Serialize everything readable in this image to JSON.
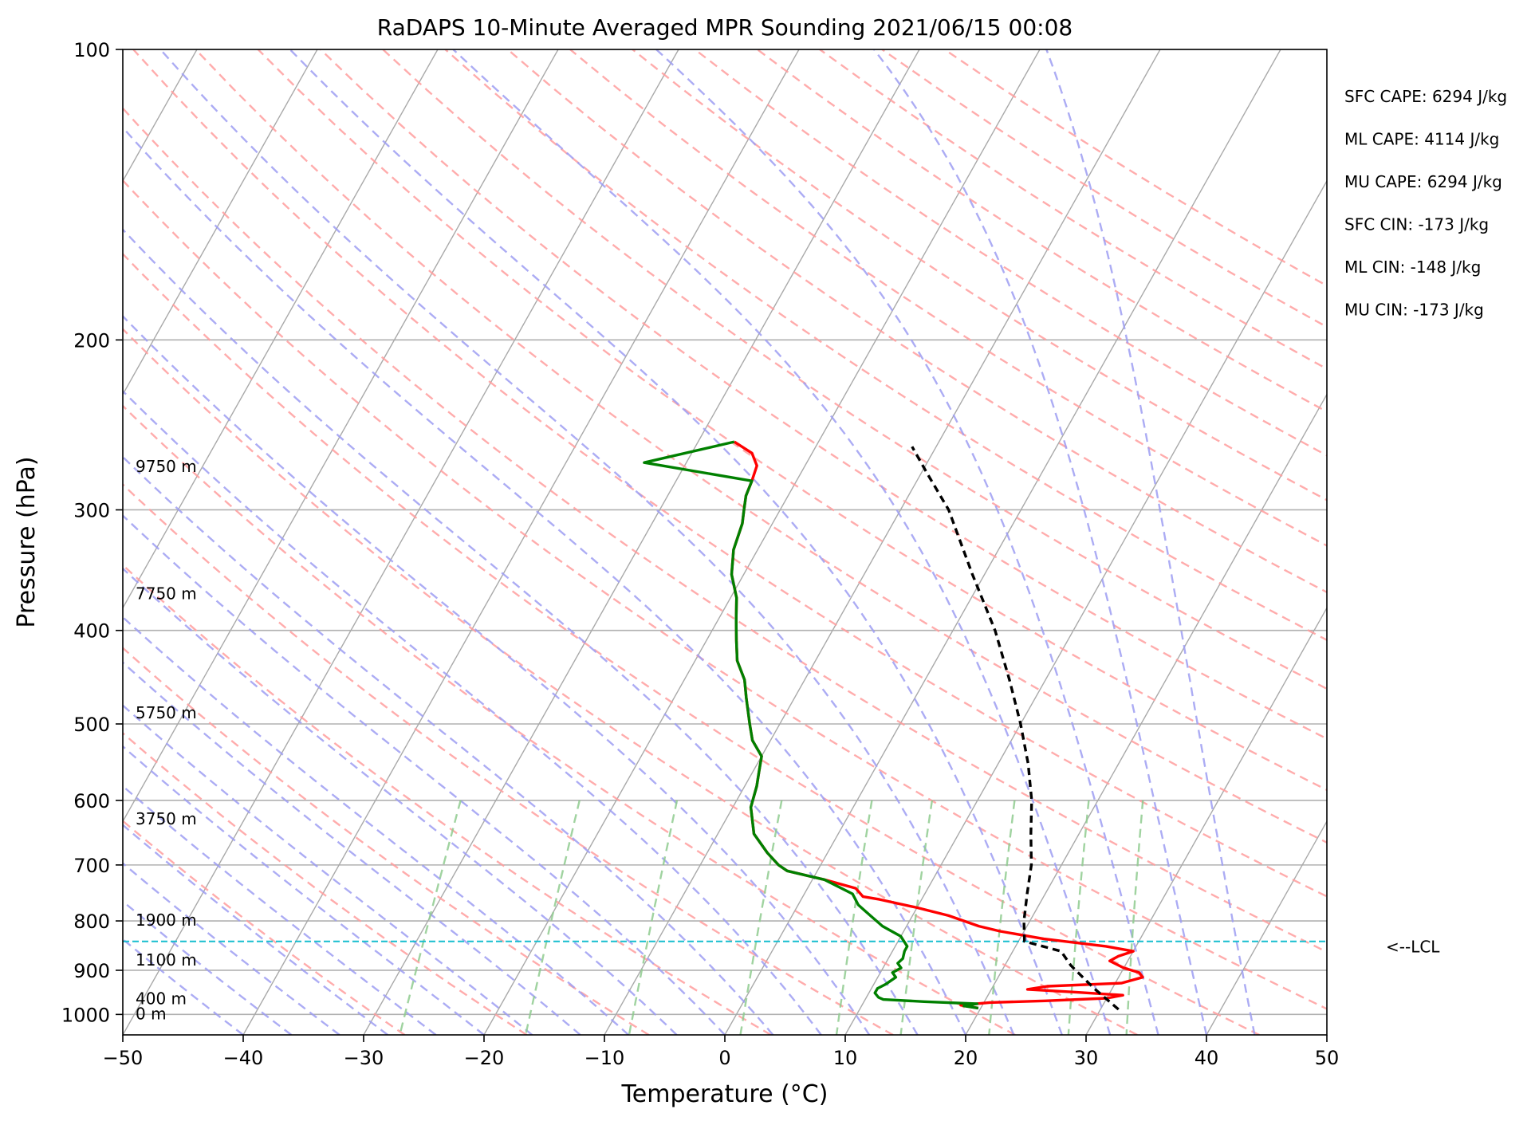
{
  "chart_data": {
    "type": "line",
    "title": "RaDAPS 10-Minute Averaged MPR Sounding 2021/06/15 00:08",
    "xlabel": "Temperature (°C)",
    "ylabel": "Pressure (hPa)",
    "xlim": [
      -50,
      50
    ],
    "ylim": [
      1050,
      100
    ],
    "y_scale": "log",
    "skew_x_per_log_decade": 45.2,
    "x_ticks": [
      -50,
      -40,
      -30,
      -20,
      -10,
      0,
      10,
      20,
      30,
      40,
      50
    ],
    "x_tick_labels": [
      "−50",
      "−40",
      "−30",
      "−20",
      "−10",
      "0",
      "10",
      "20",
      "30",
      "40",
      "50"
    ],
    "y_ticks": [
      100,
      200,
      300,
      400,
      500,
      600,
      700,
      800,
      900,
      1000
    ],
    "y_tick_labels": [
      "100",
      "200",
      "300",
      "400",
      "500",
      "600",
      "700",
      "800",
      "900",
      "1000"
    ],
    "grid": true,
    "background_lines": {
      "isotherm_color": "#a9a9a9",
      "dry_adiabat_color": "#ff9e9e",
      "moist_adiabat_color": "#9d9df2",
      "mixing_ratio_color": "#8fcb8f",
      "lcl_color": "#17becf"
    },
    "series": [
      {
        "color": "#ff0000",
        "points": [
          [
            19.8,
            985
          ],
          [
            18.2,
            978
          ],
          [
            20.5,
            972
          ],
          [
            25.0,
            968
          ],
          [
            30.0,
            962
          ],
          [
            31.2,
            955
          ],
          [
            27.0,
            948
          ],
          [
            23.0,
            942
          ],
          [
            24.5,
            935
          ],
          [
            30.5,
            928
          ],
          [
            32.0,
            915
          ],
          [
            31.5,
            905
          ],
          [
            30.0,
            895
          ],
          [
            28.5,
            880
          ],
          [
            29.0,
            870
          ],
          [
            30.0,
            860
          ],
          [
            27.5,
            850
          ],
          [
            22.0,
            835
          ],
          [
            18.0,
            820
          ],
          [
            16.0,
            810
          ],
          [
            13.0,
            790
          ],
          [
            10.0,
            775
          ],
          [
            6.5,
            760
          ],
          [
            5.0,
            755
          ],
          [
            4.0,
            740
          ],
          [
            1.0,
            725
          ],
          [
            -2.5,
            710
          ],
          [
            -3.5,
            700
          ],
          [
            -5.0,
            680
          ],
          [
            -7.0,
            650
          ],
          [
            -8.5,
            610
          ],
          [
            -9.0,
            580
          ],
          [
            -9.5,
            560
          ],
          [
            -10.0,
            540
          ],
          [
            -11.5,
            520
          ],
          [
            -12.5,
            500
          ],
          [
            -14.0,
            470
          ],
          [
            -15.0,
            450
          ],
          [
            -16.5,
            430
          ],
          [
            -17.5,
            410
          ],
          [
            -18.5,
            390
          ],
          [
            -19.5,
            370
          ],
          [
            -21.0,
            350
          ],
          [
            -22.0,
            330
          ],
          [
            -22.5,
            310
          ],
          [
            -23.0,
            300
          ],
          [
            -23.5,
            290
          ],
          [
            -23.7,
            280
          ],
          [
            -24.0,
            270
          ],
          [
            -25.0,
            262
          ],
          [
            -27.0,
            255
          ]
        ]
      },
      {
        "color": "#008000",
        "points": [
          [
            19.8,
            985
          ],
          [
            18.5,
            980
          ],
          [
            19.5,
            975
          ],
          [
            15.0,
            970
          ],
          [
            11.5,
            965
          ],
          [
            11.0,
            960
          ],
          [
            10.5,
            950
          ],
          [
            10.5,
            940
          ],
          [
            11.0,
            930
          ],
          [
            11.5,
            915
          ],
          [
            11.0,
            905
          ],
          [
            11.5,
            895
          ],
          [
            11.0,
            885
          ],
          [
            11.2,
            875
          ],
          [
            11.0,
            860
          ],
          [
            11.0,
            850
          ],
          [
            10.0,
            830
          ],
          [
            8.0,
            810
          ],
          [
            6.5,
            790
          ],
          [
            5.0,
            770
          ],
          [
            4.0,
            750
          ],
          [
            1.0,
            725
          ],
          [
            -2.5,
            710
          ],
          [
            -3.5,
            700
          ],
          [
            -5.0,
            680
          ],
          [
            -7.0,
            650
          ],
          [
            -8.5,
            610
          ],
          [
            -9.0,
            580
          ],
          [
            -9.5,
            560
          ],
          [
            -10.0,
            540
          ],
          [
            -11.5,
            520
          ],
          [
            -12.5,
            500
          ],
          [
            -14.0,
            470
          ],
          [
            -15.0,
            450
          ],
          [
            -16.5,
            430
          ],
          [
            -17.5,
            410
          ],
          [
            -18.5,
            390
          ],
          [
            -19.5,
            370
          ],
          [
            -21.0,
            350
          ],
          [
            -22.0,
            330
          ],
          [
            -22.5,
            310
          ],
          [
            -23.0,
            300
          ],
          [
            -23.5,
            290
          ],
          [
            -23.7,
            280
          ],
          [
            -33.5,
            268
          ],
          [
            -27.0,
            255
          ]
        ]
      },
      {
        "color": "#000000",
        "dashed": true,
        "points": [
          [
            31.5,
            988
          ],
          [
            28.5,
            940
          ],
          [
            25.5,
            890
          ],
          [
            24.0,
            860
          ],
          [
            20.5,
            840
          ],
          [
            19.5,
            800
          ],
          [
            18.5,
            750
          ],
          [
            17.5,
            700
          ],
          [
            16.0,
            650
          ],
          [
            14.5,
            600
          ],
          [
            12.5,
            550
          ],
          [
            10.0,
            500
          ],
          [
            7.0,
            450
          ],
          [
            3.5,
            400
          ],
          [
            -1.0,
            350
          ],
          [
            -6.0,
            300
          ],
          [
            -9.5,
            275
          ],
          [
            -12.0,
            258
          ]
        ]
      }
    ],
    "lcl": {
      "pressure": 840,
      "label": "<--LCL"
    },
    "height_labels": [
      {
        "pressure": 1000,
        "text": "0 m"
      },
      {
        "pressure": 965,
        "text": "400 m"
      },
      {
        "pressure": 880,
        "text": "1100 m"
      },
      {
        "pressure": 800,
        "text": "1900 m"
      },
      {
        "pressure": 628,
        "text": "3750 m"
      },
      {
        "pressure": 488,
        "text": "5750 m"
      },
      {
        "pressure": 367,
        "text": "7750 m"
      },
      {
        "pressure": 271,
        "text": "9750 m"
      }
    ],
    "annotations": [
      "SFC CAPE: 6294 J/kg",
      "ML CAPE: 4114 J/kg",
      "MU CAPE: 6294 J/kg",
      "SFC CIN: -173 J/kg",
      "ML CIN: -148 J/kg",
      "MU CIN: -173 J/kg"
    ]
  }
}
